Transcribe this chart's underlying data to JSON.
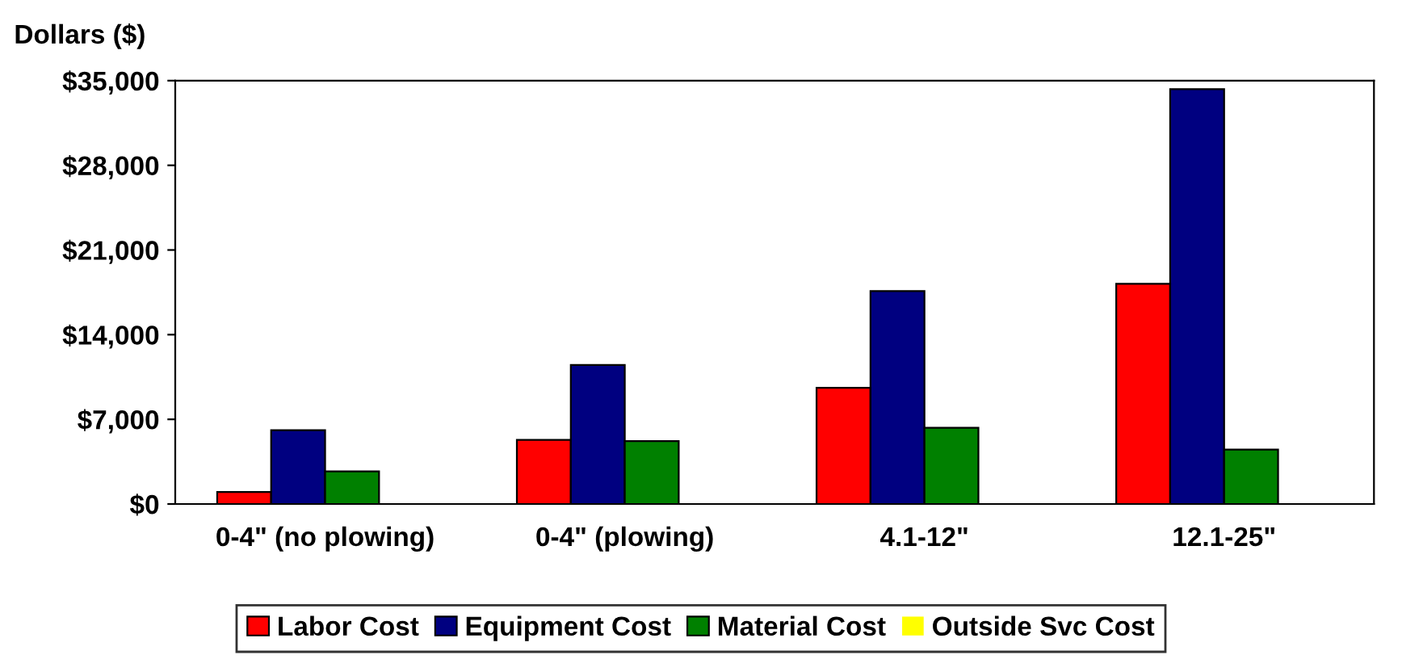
{
  "chart_data": {
    "type": "bar",
    "ylabel": "Dollars ($)",
    "categories": [
      "0-4\" (no plowing)",
      "0-4\" (plowing)",
      "4.1-12\"",
      "12.1-25\""
    ],
    "series": [
      {
        "name": "Labor Cost",
        "color": "#ff0000",
        "values": [
          1000,
          5300,
          9600,
          18200
        ]
      },
      {
        "name": "Equipment Cost",
        "color": "#000080",
        "values": [
          6100,
          11500,
          17600,
          34300
        ]
      },
      {
        "name": "Material Cost",
        "color": "#008000",
        "values": [
          2700,
          5200,
          6300,
          4500
        ]
      },
      {
        "name": "Outside Svc Cost",
        "color": "#ffff00",
        "values": [
          0,
          0,
          0,
          0
        ]
      }
    ],
    "ylim": [
      0,
      35000
    ],
    "yticks": [
      {
        "value": 0,
        "label": "$0"
      },
      {
        "value": 7000,
        "label": "$7,000"
      },
      {
        "value": 14000,
        "label": "$14,000"
      },
      {
        "value": 21000,
        "label": "$21,000"
      },
      {
        "value": 28000,
        "label": "$28,000"
      },
      {
        "value": 35000,
        "label": "$35,000"
      }
    ],
    "grid": false,
    "legend": "bottom"
  }
}
